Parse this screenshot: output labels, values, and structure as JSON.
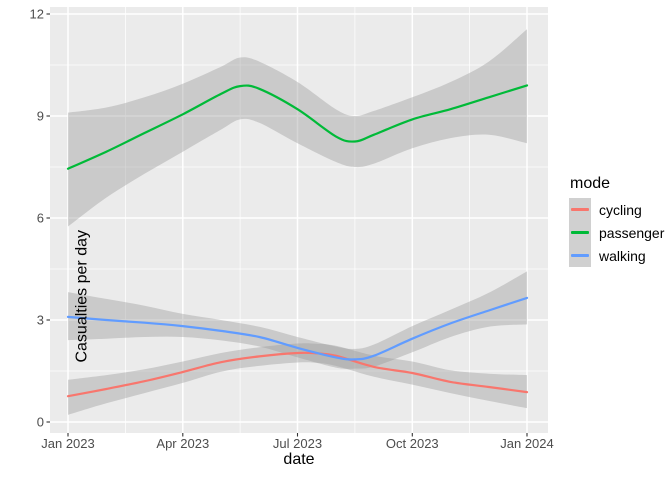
{
  "chart_data": {
    "type": "line",
    "xlabel": "date",
    "ylabel": "Casualties per day",
    "legend": {
      "title": "mode",
      "position": "right"
    },
    "x_unit": "months since Jan 2023",
    "x_ticks": [
      {
        "pos": 0,
        "label": "Jan 2023"
      },
      {
        "pos": 3,
        "label": "Apr 2023"
      },
      {
        "pos": 6,
        "label": "Jul 2023"
      },
      {
        "pos": 9,
        "label": "Oct 2023"
      },
      {
        "pos": 12,
        "label": "Jan 2024"
      }
    ],
    "x_minor_ticks": [
      1.5,
      4.5,
      7.5,
      10.5
    ],
    "y_ticks": [
      0,
      3,
      6,
      9,
      12
    ],
    "y_minor_ticks": [
      1.5,
      4.5,
      7.5,
      10.5
    ],
    "xlim_months": [
      -0.47,
      12.55
    ],
    "ylim": [
      -0.32,
      12.21
    ],
    "grid": "on",
    "colors": {
      "panel_bg": "#EBEBEB",
      "grid": "#FFFFFF",
      "ribbon": "#999999",
      "ribbon_opacity": 0.4,
      "tick_text": "#4D4D4D",
      "tick_mark": "#333333"
    },
    "series": [
      {
        "name": "cycling",
        "color": "#F8766D",
        "x": [
          0,
          1,
          2,
          3,
          4,
          5,
          6,
          6.5,
          7,
          8,
          9,
          10,
          11,
          12
        ],
        "y": [
          0.76,
          0.97,
          1.2,
          1.47,
          1.76,
          1.93,
          2.03,
          2.02,
          1.95,
          1.62,
          1.44,
          1.18,
          1.03,
          0.88
        ],
        "lower": [
          0.21,
          0.55,
          0.85,
          1.15,
          1.48,
          1.65,
          1.75,
          1.74,
          1.65,
          1.33,
          1.1,
          0.85,
          0.62,
          0.41
        ],
        "upper": [
          1.24,
          1.38,
          1.55,
          1.78,
          2.03,
          2.2,
          2.31,
          2.3,
          2.24,
          1.95,
          1.78,
          1.52,
          1.42,
          1.38
        ]
      },
      {
        "name": "passenger",
        "color": "#00BA38",
        "x": [
          0,
          1,
          2,
          3,
          4,
          4.5,
          5,
          6,
          7,
          7.5,
          8,
          9,
          10,
          11,
          12
        ],
        "y": [
          7.45,
          7.95,
          8.5,
          9.05,
          9.65,
          9.88,
          9.8,
          9.2,
          8.4,
          8.25,
          8.45,
          8.9,
          9.2,
          9.55,
          9.9
        ],
        "lower": [
          5.75,
          6.6,
          7.3,
          7.95,
          8.6,
          8.9,
          8.8,
          8.2,
          7.65,
          7.5,
          7.6,
          8.05,
          8.35,
          8.45,
          8.2
        ],
        "upper": [
          9.1,
          9.25,
          9.55,
          9.95,
          10.45,
          10.72,
          10.6,
          10.0,
          9.2,
          9.0,
          9.15,
          9.55,
          10.0,
          10.6,
          11.55
        ]
      },
      {
        "name": "walking",
        "color": "#619CFF",
        "x": [
          0,
          1,
          2,
          3,
          4,
          5,
          6,
          7,
          7.5,
          8,
          9,
          10,
          11,
          12
        ],
        "y": [
          3.09,
          3.0,
          2.92,
          2.82,
          2.68,
          2.5,
          2.18,
          1.9,
          1.84,
          1.95,
          2.45,
          2.9,
          3.28,
          3.65
        ],
        "lower": [
          2.41,
          2.45,
          2.5,
          2.5,
          2.4,
          2.22,
          1.9,
          1.6,
          1.57,
          1.63,
          2.05,
          2.5,
          2.8,
          2.87
        ],
        "upper": [
          3.82,
          3.62,
          3.42,
          3.18,
          3.0,
          2.8,
          2.5,
          2.22,
          2.15,
          2.28,
          2.82,
          3.3,
          3.8,
          4.43
        ]
      }
    ]
  }
}
